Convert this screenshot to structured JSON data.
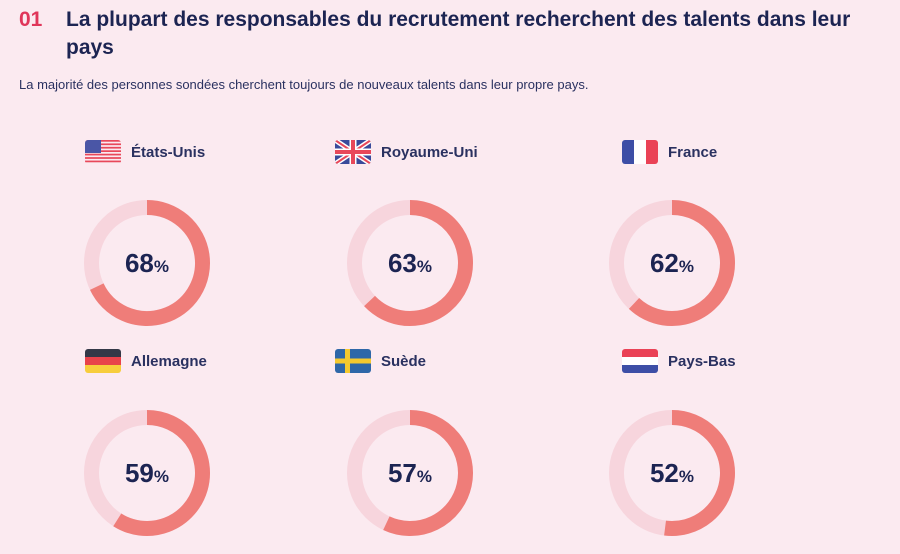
{
  "header": {
    "number": "01",
    "title": "La plupart des responsables du recrutement recherchent des talents dans leur pays",
    "subtitle": "La majorité des personnes sondées cherchent toujours de nouveaux talents dans leur propre pays."
  },
  "colors": {
    "background": "#fbeaf0",
    "accent_number": "#e0365a",
    "ring_filled": "#ef7d79",
    "ring_track": "#f7d5dd",
    "text": "#1c2452"
  },
  "chart_data": {
    "type": "pie",
    "subtype": "donut-grid",
    "title": "La plupart des responsables du recrutement recherchent des talents dans leur pays",
    "subtitle": "La majorité des personnes sondées cherchent toujours de nouveaux talents dans leur propre pays.",
    "unit": "%",
    "max": 100,
    "categories": [
      "États-Unis",
      "Royaume-Uni",
      "France",
      "Allemagne",
      "Suède",
      "Pays-Bas"
    ],
    "values": [
      68,
      63,
      62,
      59,
      57,
      52
    ],
    "items": [
      {
        "country": "États-Unis",
        "flag": "us-flag-icon",
        "value": 68,
        "label": "68"
      },
      {
        "country": "Royaume-Uni",
        "flag": "uk-flag-icon",
        "value": 63,
        "label": "63"
      },
      {
        "country": "France",
        "flag": "france-flag-icon",
        "value": 62,
        "label": "62"
      },
      {
        "country": "Allemagne",
        "flag": "germany-flag-icon",
        "value": 59,
        "label": "59"
      },
      {
        "country": "Suède",
        "flag": "sweden-flag-icon",
        "value": 57,
        "label": "57"
      },
      {
        "country": "Pays-Bas",
        "flag": "netherlands-flag-icon",
        "value": 52,
        "label": "52"
      }
    ],
    "percent_sign": "%"
  }
}
